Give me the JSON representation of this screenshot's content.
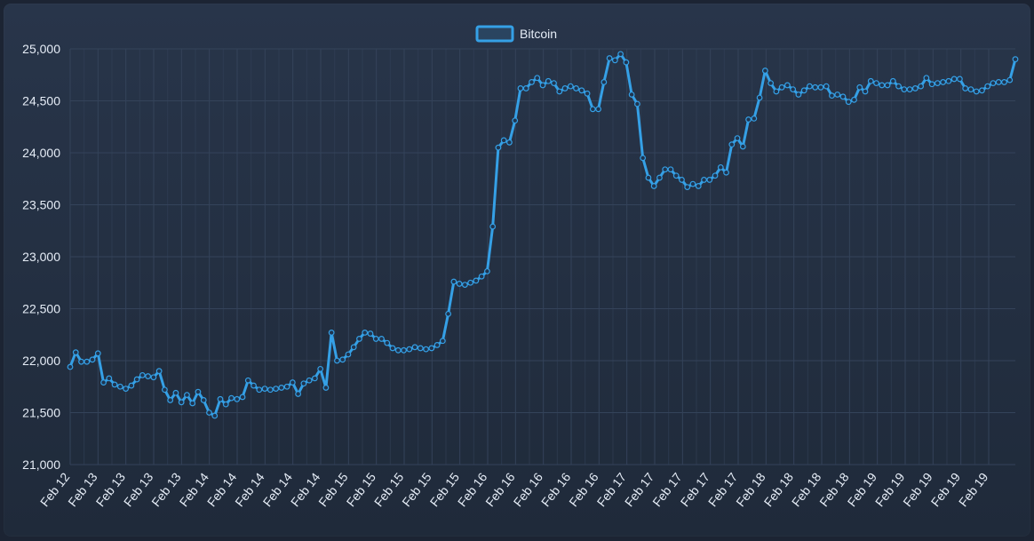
{
  "chart_data": {
    "type": "line",
    "legend": {
      "position": "top-center",
      "label": "Bitcoin"
    },
    "series": [
      {
        "name": "Bitcoin",
        "color": "#35a0e6",
        "values": [
          21940,
          22080,
          21990,
          21990,
          22010,
          22070,
          21790,
          21830,
          21770,
          21750,
          21730,
          21760,
          21820,
          21860,
          21850,
          21840,
          21900,
          21720,
          21620,
          21690,
          21600,
          21670,
          21590,
          21700,
          21620,
          21500,
          21470,
          21630,
          21580,
          21640,
          21630,
          21650,
          21810,
          21760,
          21720,
          21730,
          21720,
          21730,
          21740,
          21750,
          21790,
          21680,
          21780,
          21810,
          21830,
          21920,
          21740,
          22270,
          22000,
          22010,
          22060,
          22130,
          22210,
          22270,
          22260,
          22210,
          22210,
          22170,
          22120,
          22100,
          22100,
          22110,
          22130,
          22120,
          22110,
          22120,
          22150,
          22190,
          22450,
          22760,
          22740,
          22730,
          22750,
          22770,
          22810,
          22860,
          23290,
          24050,
          24120,
          24100,
          24310,
          24620,
          24620,
          24680,
          24720,
          24650,
          24690,
          24670,
          24590,
          24620,
          24640,
          24620,
          24600,
          24570,
          24420,
          24420,
          24680,
          24910,
          24890,
          24950,
          24870,
          24560,
          24470,
          23950,
          23760,
          23680,
          23760,
          23840,
          23840,
          23780,
          23740,
          23670,
          23700,
          23680,
          23740,
          23740,
          23780,
          23860,
          23810,
          24080,
          24140,
          24060,
          24320,
          24330,
          24530,
          24790,
          24670,
          24590,
          24630,
          24650,
          24610,
          24560,
          24600,
          24640,
          24630,
          24630,
          24640,
          24550,
          24560,
          24540,
          24490,
          24510,
          24630,
          24590,
          24690,
          24670,
          24650,
          24650,
          24690,
          24640,
          24610,
          24610,
          24620,
          24640,
          24720,
          24660,
          24670,
          24680,
          24690,
          24710,
          24710,
          24620,
          24610,
          24590,
          24600,
          24640,
          24670,
          24680,
          24680,
          24700,
          24900
        ]
      }
    ],
    "x_tick_labels": [
      "Feb 12",
      "Feb 13",
      "Feb 13",
      "Feb 13",
      "Feb 13",
      "Feb 14",
      "Feb 14",
      "Feb 14",
      "Feb 14",
      "Feb 14",
      "Feb 15",
      "Feb 15",
      "Feb 15",
      "Feb 15",
      "Feb 15",
      "Feb 16",
      "Feb 16",
      "Feb 16",
      "Feb 16",
      "Feb 16",
      "Feb 17",
      "Feb 17",
      "Feb 17",
      "Feb 17",
      "Feb 17",
      "Feb 18",
      "Feb 18",
      "Feb 18",
      "Feb 18",
      "Feb 19",
      "Feb 19",
      "Feb 19",
      "Feb 19",
      "Feb 19"
    ],
    "y_ticks": [
      21000,
      21500,
      22000,
      22500,
      23000,
      23500,
      24000,
      24500,
      25000
    ],
    "y_tick_labels": [
      "21,000",
      "21,500",
      "22,000",
      "22,500",
      "23,000",
      "23,500",
      "24,000",
      "24,500",
      "25,000"
    ],
    "ylim": [
      21000,
      25000
    ],
    "grid": true,
    "background_color": "#243044",
    "grid_color": "#34435a",
    "text_color": "#e6edf7"
  }
}
